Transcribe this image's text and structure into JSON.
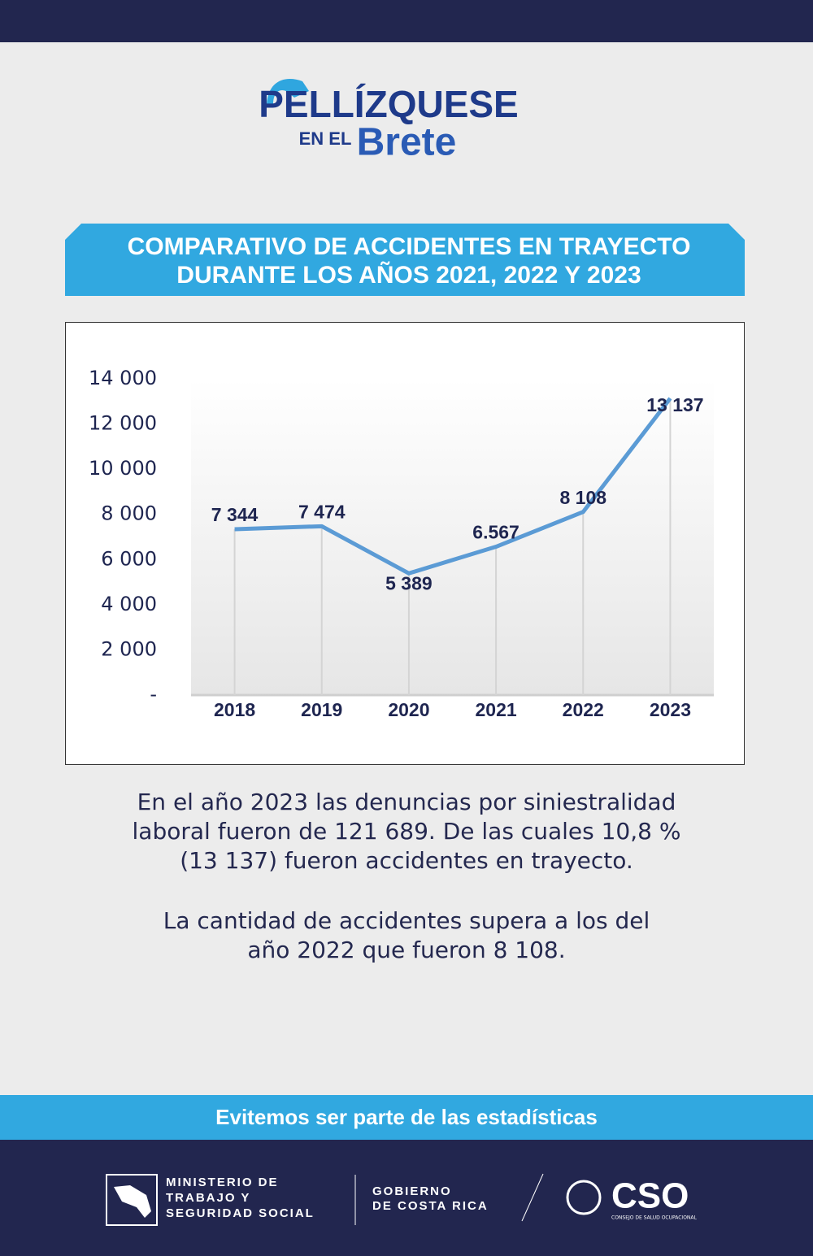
{
  "logo": {
    "line1": "PELLÍZQUESE",
    "line2a": "EN EL",
    "line2b": "Brete"
  },
  "banner_title": [
    "COMPARATIVO DE ACCIDENTES EN TRAYECTO",
    "DURANTE LOS AÑOS 2021, 2022 Y 2023"
  ],
  "chart_data": {
    "type": "line",
    "categories": [
      "2018",
      "2019",
      "2020",
      "2021",
      "2022",
      "2023"
    ],
    "values": [
      7344,
      7474,
      5389,
      6567,
      8108,
      13137
    ],
    "value_labels": [
      "7 344",
      "7 474",
      "5 389",
      "6.567",
      "8 108",
      "13 137"
    ],
    "color": "#5b9bd5",
    "ylim": [
      0,
      14000
    ],
    "yticks": [
      {
        "value": 0,
        "label": "-"
      },
      {
        "value": 2000,
        "label": "2 000"
      },
      {
        "value": 4000,
        "label": "4 000"
      },
      {
        "value": 6000,
        "label": "6 000"
      },
      {
        "value": 8000,
        "label": "8 000"
      },
      {
        "value": 10000,
        "label": "10 000"
      },
      {
        "value": 12000,
        "label": "12 000"
      },
      {
        "value": 14000,
        "label": "14 000"
      }
    ]
  },
  "paragraphs": [
    [
      "En el año 2023 las denuncias por siniestralidad",
      "laboral fueron de 121 689. De las cuales 10,8 %",
      "(13 137) fueron accidentes en trayecto."
    ],
    [
      "La cantidad de accidentes supera a los del",
      "año 2022 que fueron 8 108."
    ]
  ],
  "footer": {
    "slogan": "Evitemos ser parte de las estadísticas",
    "ministry": [
      "MINISTERIO DE",
      "TRABAJO Y",
      "SEGURIDAD SOCIAL"
    ],
    "government": [
      "GOBIERNO",
      "DE COSTA RICA"
    ],
    "cso": "CSO",
    "cso_name": "CONSEJO DE SALUD OCUPACIONAL"
  }
}
